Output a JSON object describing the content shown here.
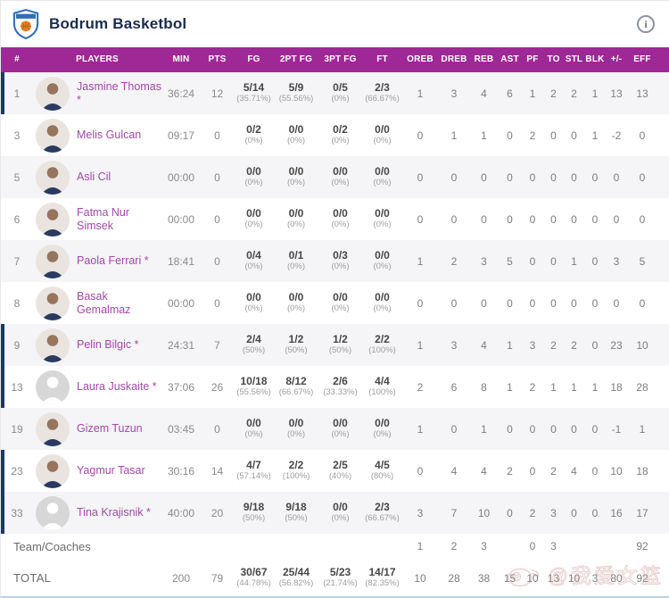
{
  "header": {
    "team_name": "Bodrum Basketbol"
  },
  "colors": {
    "header_bar": "#9e2896",
    "team_name_text": "#1c2b4d",
    "player_name_text": "#a04aa8",
    "row_alt_bg": "#f5f4f6",
    "on_court_bar": "#1b3a66",
    "bottom_border": "#b9d3e4"
  },
  "icons": {
    "logo": "team-crest-shield-with-basketball",
    "info": "circled-i-info",
    "watermark_logo": "weibo-eye-logo"
  },
  "table": {
    "columns": [
      "#",
      "PLAYERS",
      "MIN",
      "PTS",
      "FG",
      "2PT FG",
      "3PT FG",
      "FT",
      "OREB",
      "DREB",
      "REB",
      "AST",
      "PF",
      "TO",
      "STL",
      "BLK",
      "+/-",
      "EFF"
    ],
    "players": [
      {
        "number": "1",
        "name": "Jasmine Thomas",
        "name2": "",
        "starter": true,
        "on_court": true,
        "photo": true,
        "min": "36:24",
        "pts": "12",
        "shots": [
          [
            "5/14",
            "(35.71%)"
          ],
          [
            "5/9",
            "(55.56%)"
          ],
          [
            "0/5",
            "(0%)"
          ],
          [
            "2/3",
            "(66.67%)"
          ]
        ],
        "stats": [
          "1",
          "3",
          "4",
          "6",
          "1",
          "2",
          "2",
          "1",
          "13",
          "13"
        ]
      },
      {
        "number": "3",
        "name": "Melis Gulcan",
        "name2": "",
        "starter": false,
        "on_court": false,
        "photo": true,
        "min": "09:17",
        "pts": "0",
        "shots": [
          [
            "0/2",
            "(0%)"
          ],
          [
            "0/0",
            "(0%)"
          ],
          [
            "0/2",
            "(0%)"
          ],
          [
            "0/0",
            "(0%)"
          ]
        ],
        "stats": [
          "0",
          "1",
          "1",
          "0",
          "2",
          "0",
          "0",
          "1",
          "-2",
          "0"
        ]
      },
      {
        "number": "5",
        "name": "Asli Cil",
        "name2": "",
        "starter": false,
        "on_court": false,
        "photo": true,
        "min": "00:00",
        "pts": "0",
        "shots": [
          [
            "0/0",
            "(0%)"
          ],
          [
            "0/0",
            "(0%)"
          ],
          [
            "0/0",
            "(0%)"
          ],
          [
            "0/0",
            "(0%)"
          ]
        ],
        "stats": [
          "0",
          "0",
          "0",
          "0",
          "0",
          "0",
          "0",
          "0",
          "0",
          "0"
        ]
      },
      {
        "number": "6",
        "name": "Fatma Nur",
        "name2": "Simsek",
        "starter": false,
        "on_court": false,
        "photo": true,
        "min": "00:00",
        "pts": "0",
        "shots": [
          [
            "0/0",
            "(0%)"
          ],
          [
            "0/0",
            "(0%)"
          ],
          [
            "0/0",
            "(0%)"
          ],
          [
            "0/0",
            "(0%)"
          ]
        ],
        "stats": [
          "0",
          "0",
          "0",
          "0",
          "0",
          "0",
          "0",
          "0",
          "0",
          "0"
        ]
      },
      {
        "number": "7",
        "name": "Paola Ferrari",
        "name2": "",
        "starter": true,
        "on_court": false,
        "photo": true,
        "min": "18:41",
        "pts": "0",
        "shots": [
          [
            "0/4",
            "(0%)"
          ],
          [
            "0/1",
            "(0%)"
          ],
          [
            "0/3",
            "(0%)"
          ],
          [
            "0/0",
            "(0%)"
          ]
        ],
        "stats": [
          "1",
          "2",
          "3",
          "5",
          "0",
          "0",
          "1",
          "0",
          "3",
          "5"
        ]
      },
      {
        "number": "8",
        "name": "Basak Gemalmaz",
        "name2": "",
        "starter": false,
        "on_court": false,
        "photo": true,
        "min": "00:00",
        "pts": "0",
        "shots": [
          [
            "0/0",
            "(0%)"
          ],
          [
            "0/0",
            "(0%)"
          ],
          [
            "0/0",
            "(0%)"
          ],
          [
            "0/0",
            "(0%)"
          ]
        ],
        "stats": [
          "0",
          "0",
          "0",
          "0",
          "0",
          "0",
          "0",
          "0",
          "0",
          "0"
        ]
      },
      {
        "number": "9",
        "name": "Pelin Bilgic",
        "name2": "",
        "starter": true,
        "on_court": true,
        "photo": true,
        "min": "24:31",
        "pts": "7",
        "shots": [
          [
            "2/4",
            "(50%)"
          ],
          [
            "1/2",
            "(50%)"
          ],
          [
            "1/2",
            "(50%)"
          ],
          [
            "2/2",
            "(100%)"
          ]
        ],
        "stats": [
          "1",
          "3",
          "4",
          "1",
          "3",
          "2",
          "2",
          "0",
          "23",
          "10"
        ]
      },
      {
        "number": "13",
        "name": "Laura Juskaite",
        "name2": "",
        "starter": true,
        "on_court": true,
        "photo": false,
        "min": "37:06",
        "pts": "26",
        "shots": [
          [
            "10/18",
            "(55.56%)"
          ],
          [
            "8/12",
            "(66.67%)"
          ],
          [
            "2/6",
            "(33.33%)"
          ],
          [
            "4/4",
            "(100%)"
          ]
        ],
        "stats": [
          "2",
          "6",
          "8",
          "1",
          "2",
          "1",
          "1",
          "1",
          "18",
          "28"
        ]
      },
      {
        "number": "19",
        "name": "Gizem Tuzun",
        "name2": "",
        "starter": false,
        "on_court": false,
        "photo": true,
        "min": "03:45",
        "pts": "0",
        "shots": [
          [
            "0/0",
            "(0%)"
          ],
          [
            "0/0",
            "(0%)"
          ],
          [
            "0/0",
            "(0%)"
          ],
          [
            "0/0",
            "(0%)"
          ]
        ],
        "stats": [
          "1",
          "0",
          "1",
          "0",
          "0",
          "0",
          "0",
          "0",
          "-1",
          "1"
        ]
      },
      {
        "number": "23",
        "name": "Yagmur Tasar",
        "name2": "",
        "starter": false,
        "on_court": true,
        "photo": true,
        "min": "30:16",
        "pts": "14",
        "shots": [
          [
            "4/7",
            "(57.14%)"
          ],
          [
            "2/2",
            "(100%)"
          ],
          [
            "2/5",
            "(40%)"
          ],
          [
            "4/5",
            "(80%)"
          ]
        ],
        "stats": [
          "0",
          "4",
          "4",
          "2",
          "0",
          "2",
          "4",
          "0",
          "10",
          "18"
        ]
      },
      {
        "number": "33",
        "name": "Tina Krajisnik",
        "name2": "",
        "starter": true,
        "on_court": true,
        "photo": false,
        "min": "40:00",
        "pts": "20",
        "shots": [
          [
            "9/18",
            "(50%)"
          ],
          [
            "9/18",
            "(50%)"
          ],
          [
            "0/0",
            "(0%)"
          ],
          [
            "2/3",
            "(66.67%)"
          ]
        ],
        "stats": [
          "3",
          "7",
          "10",
          "0",
          "2",
          "3",
          "0",
          "0",
          "16",
          "17"
        ]
      }
    ],
    "team_row": {
      "label": "Team/Coaches",
      "stats": [
        "1",
        "2",
        "3",
        "",
        "0",
        "3",
        "",
        "",
        "",
        "92"
      ]
    },
    "total_row": {
      "label": "TOTAL",
      "min": "200",
      "pts": "79",
      "shots": [
        [
          "30/67",
          "(44.78%)"
        ],
        [
          "25/44",
          "(56.82%)"
        ],
        [
          "5/23",
          "(21.74%)"
        ],
        [
          "14/17",
          "(82.35%)"
        ]
      ],
      "stats": [
        "10",
        "28",
        "38",
        "15",
        "10",
        "13",
        "10",
        "3",
        "80",
        "92"
      ]
    }
  },
  "watermark": {
    "text": "@我爱女篮"
  }
}
